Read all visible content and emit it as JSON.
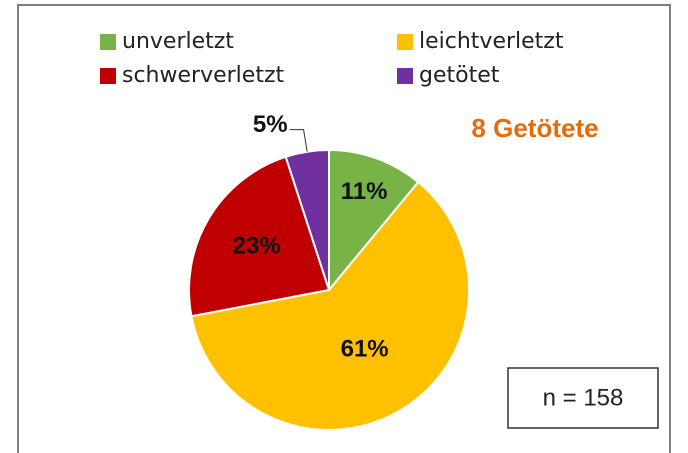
{
  "chart_data": {
    "type": "pie",
    "categories": [
      "unverletzt",
      "leichtverletzt",
      "schwerverletzt",
      "getötet"
    ],
    "values": [
      11,
      61,
      23,
      5
    ],
    "value_labels": [
      "11%",
      "61%",
      "23%",
      "5%"
    ],
    "colors": [
      "#77b347",
      "#ffc000",
      "#c00000",
      "#7030a0"
    ],
    "annotations": [
      "8 Getötete",
      "n = 158"
    ]
  }
}
